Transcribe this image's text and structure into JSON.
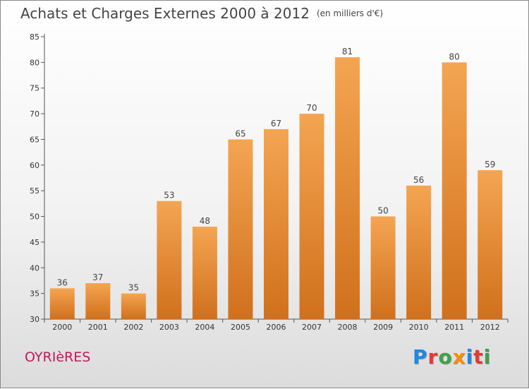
{
  "header": {
    "title": "Achats et Charges Externes 2000 à 2012",
    "subtitle": "(en milliers d'€)"
  },
  "location": "OYRIèRES",
  "logo": {
    "text": "Proxiti",
    "letters": [
      {
        "char": "P",
        "color": "#1e88e5"
      },
      {
        "char": "r",
        "color": "#e53935"
      },
      {
        "char": "o",
        "color": "#43a047"
      },
      {
        "char": "x",
        "color": "#fb8c00"
      },
      {
        "char": "i",
        "color": "#1e88e5"
      },
      {
        "char": "t",
        "color": "#e53935"
      },
      {
        "char": "i",
        "color": "#43a047"
      }
    ]
  },
  "chart_data": {
    "type": "bar",
    "title": "Achats et Charges Externes 2000 à 2012",
    "subtitle": "(en milliers d'€)",
    "categories": [
      "2000",
      "2001",
      "2002",
      "2003",
      "2004",
      "2005",
      "2006",
      "2007",
      "2008",
      "2009",
      "2010",
      "2011",
      "2012"
    ],
    "values": [
      36,
      37,
      35,
      53,
      48,
      65,
      67,
      70,
      81,
      50,
      56,
      80,
      59
    ],
    "ylim": [
      30,
      85
    ],
    "yticks": [
      30,
      35,
      40,
      45,
      50,
      55,
      60,
      65,
      70,
      75,
      80,
      85
    ],
    "grid": false,
    "bar_color": "#f09a3e",
    "xlabel": "",
    "ylabel": ""
  }
}
